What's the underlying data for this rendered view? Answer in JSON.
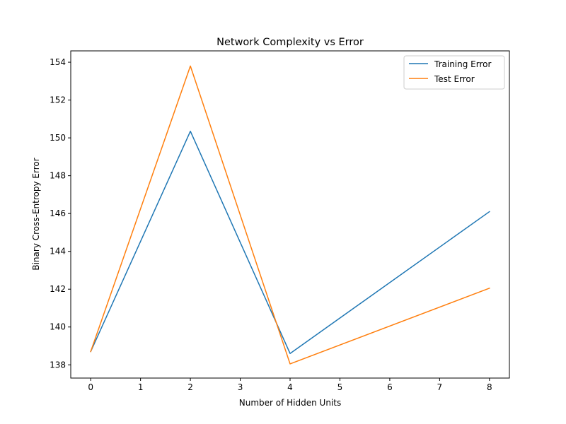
{
  "chart_data": {
    "type": "line",
    "title": "Network Complexity vs Error",
    "xlabel": "Number of Hidden Units",
    "ylabel": "Binary Cross-Entropy Error",
    "x": [
      0,
      2,
      4,
      8
    ],
    "series": [
      {
        "name": "Training Error",
        "color": "#1f77b4",
        "values": [
          138.7,
          150.35,
          138.6,
          146.1
        ]
      },
      {
        "name": "Test Error",
        "color": "#ff7f0e",
        "values": [
          138.7,
          153.8,
          138.05,
          142.05
        ]
      }
    ],
    "xlim": [
      -0.4,
      8.4
    ],
    "ylim": [
      137.3,
      154.6
    ],
    "xticks": [
      0,
      1,
      2,
      3,
      4,
      5,
      6,
      7,
      8
    ],
    "yticks": [
      138,
      140,
      142,
      144,
      146,
      148,
      150,
      152,
      154
    ],
    "xtick_labels": [
      "0",
      "1",
      "2",
      "3",
      "4",
      "5",
      "6",
      "7",
      "8"
    ],
    "ytick_labels": [
      "138",
      "140",
      "142",
      "144",
      "146",
      "148",
      "150",
      "152",
      "154"
    ],
    "grid": false,
    "legend_position": "top-right"
  }
}
